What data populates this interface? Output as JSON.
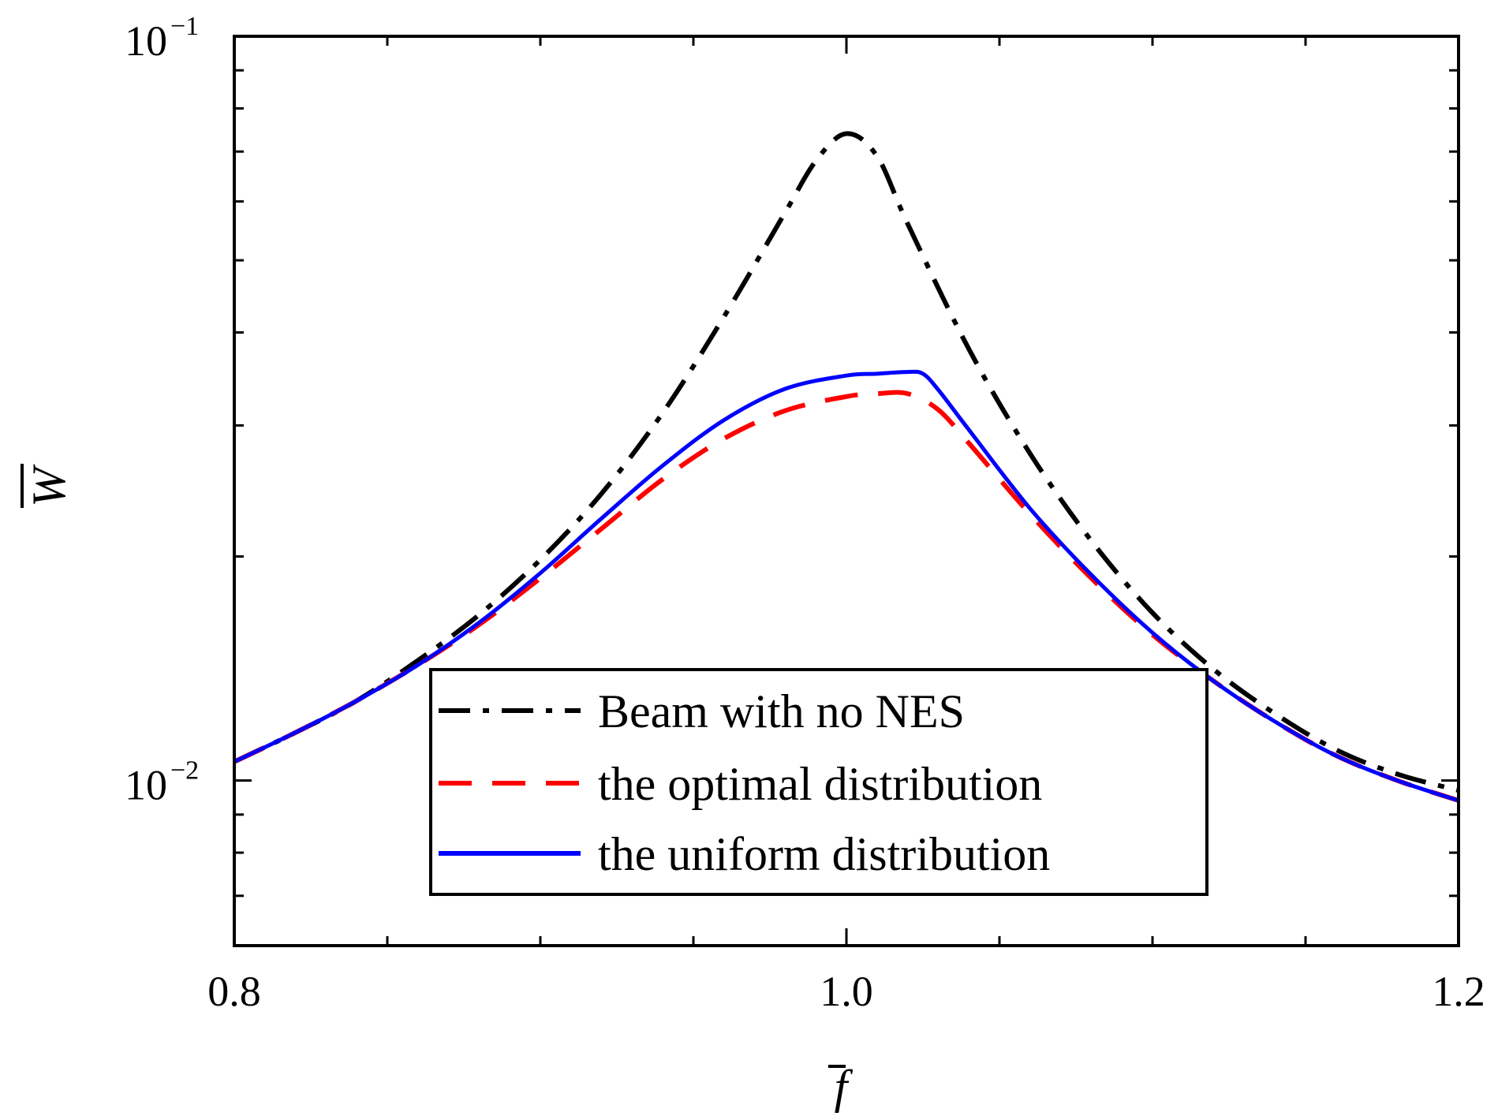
{
  "chart_data": {
    "type": "line",
    "title": "",
    "xlabel": "f",
    "ylabel": "W",
    "xlim": [
      0.8,
      1.2
    ],
    "ylim": [
      0.006,
      0.1
    ],
    "yscale": "log",
    "x_tick_labels": [
      "0.8",
      "1.0",
      "1.2"
    ],
    "y_tick_labels": [
      {
        "base": "10",
        "exp": "−2"
      },
      {
        "base": "10",
        "exp": "−1"
      }
    ],
    "legend_position": "lower-center",
    "series": [
      {
        "name": "Beam with no NES",
        "color": "#000000",
        "style": "dashdot",
        "x": [
          0.8,
          0.82,
          0.84,
          0.86,
          0.88,
          0.9,
          0.92,
          0.94,
          0.96,
          0.98,
          0.99,
          1.0,
          1.01,
          1.02,
          1.04,
          1.06,
          1.08,
          1.1,
          1.12,
          1.14,
          1.16,
          1.18,
          1.2
        ],
        "values": [
          0.0106,
          0.0116,
          0.0128,
          0.0145,
          0.0167,
          0.0198,
          0.0243,
          0.0312,
          0.042,
          0.058,
          0.068,
          0.074,
          0.069,
          0.056,
          0.038,
          0.0275,
          0.021,
          0.0168,
          0.0141,
          0.0123,
          0.011,
          0.0102,
          0.0097
        ]
      },
      {
        "name": "the optimal distribution",
        "color": "#ff0000",
        "style": "dashed",
        "x": [
          0.8,
          0.82,
          0.84,
          0.86,
          0.88,
          0.9,
          0.92,
          0.94,
          0.96,
          0.98,
          1.0,
          1.01,
          1.02,
          1.03,
          1.04,
          1.06,
          1.08,
          1.1,
          1.12,
          1.14,
          1.16,
          1.18,
          1.2
        ],
        "values": [
          0.0106,
          0.0116,
          0.0128,
          0.0143,
          0.0162,
          0.0187,
          0.0218,
          0.0254,
          0.0288,
          0.0314,
          0.0328,
          0.0331,
          0.0331,
          0.0315,
          0.0284,
          0.0228,
          0.0187,
          0.0157,
          0.0136,
          0.012,
          0.0108,
          0.01,
          0.0094
        ]
      },
      {
        "name": "the uniform distribution",
        "color": "#0000ff",
        "style": "solid",
        "x": [
          0.8,
          0.82,
          0.84,
          0.86,
          0.88,
          0.9,
          0.92,
          0.94,
          0.96,
          0.98,
          1.0,
          1.01,
          1.02,
          1.025,
          1.03,
          1.04,
          1.06,
          1.08,
          1.1,
          1.12,
          1.14,
          1.16,
          1.18,
          1.2
        ],
        "values": [
          0.0106,
          0.0116,
          0.0128,
          0.0143,
          0.0163,
          0.019,
          0.0225,
          0.0265,
          0.0305,
          0.0336,
          0.035,
          0.0352,
          0.0354,
          0.0352,
          0.0335,
          0.0296,
          0.0232,
          0.0189,
          0.0158,
          0.0136,
          0.012,
          0.0108,
          0.01,
          0.0094
        ]
      }
    ]
  }
}
